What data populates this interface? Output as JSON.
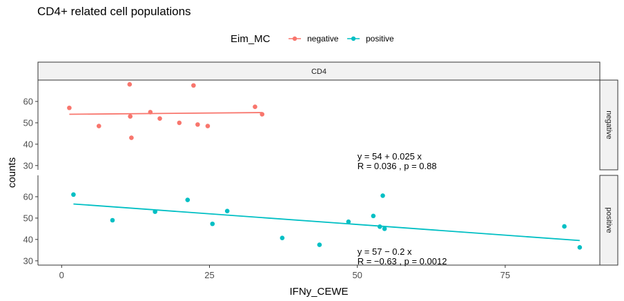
{
  "colors": {
    "negative": "#F8766D",
    "positive": "#00BFC4"
  },
  "chart_data": {
    "type": "scatter",
    "title": "CD4+ related cell populations",
    "xlabel": "IFNy_CEWE",
    "ylabel": "counts",
    "xlim": [
      -4,
      91
    ],
    "ylim": [
      28,
      70
    ],
    "x_ticks": [
      0,
      25,
      50,
      75
    ],
    "y_ticks": [
      30,
      40,
      50,
      60
    ],
    "column_strip": "CD4",
    "legend": {
      "title": "Eim_MC",
      "position": "top",
      "entries": [
        "negative",
        "positive"
      ]
    },
    "grid": false,
    "panels": [
      {
        "name": "negative",
        "color_key": "negative",
        "points": [
          {
            "x": 1.3,
            "y": 57
          },
          {
            "x": 6.3,
            "y": 48.5
          },
          {
            "x": 11.5,
            "y": 68
          },
          {
            "x": 11.6,
            "y": 53
          },
          {
            "x": 11.8,
            "y": 43
          },
          {
            "x": 15,
            "y": 55
          },
          {
            "x": 16.6,
            "y": 52
          },
          {
            "x": 19.9,
            "y": 50
          },
          {
            "x": 22.3,
            "y": 67.5
          },
          {
            "x": 23,
            "y": 49.2
          },
          {
            "x": 24.7,
            "y": 48.5
          },
          {
            "x": 32.7,
            "y": 57.5
          },
          {
            "x": 33.9,
            "y": 54
          }
        ],
        "fit": {
          "x": [
            1.3,
            33.9
          ],
          "y": [
            54.0,
            54.8
          ]
        },
        "equation": "y = 54 + 0.025 x",
        "stats": "R = 0.036 , p = 0.88",
        "label_x": 50
      },
      {
        "name": "positive",
        "color_key": "positive",
        "points": [
          {
            "x": 2,
            "y": 61
          },
          {
            "x": 8.6,
            "y": 49
          },
          {
            "x": 15.8,
            "y": 53
          },
          {
            "x": 21.3,
            "y": 58.5
          },
          {
            "x": 25.5,
            "y": 47.3
          },
          {
            "x": 28,
            "y": 53.3
          },
          {
            "x": 37.3,
            "y": 40.7
          },
          {
            "x": 43.6,
            "y": 37.5
          },
          {
            "x": 48.5,
            "y": 48.3
          },
          {
            "x": 52.7,
            "y": 51
          },
          {
            "x": 53.8,
            "y": 46
          },
          {
            "x": 54.3,
            "y": 60.5
          },
          {
            "x": 54.6,
            "y": 45
          },
          {
            "x": 85,
            "y": 46.1
          },
          {
            "x": 87.6,
            "y": 36.3
          }
        ],
        "fit": {
          "x": [
            2,
            87.6
          ],
          "y": [
            56.6,
            39.5
          ]
        },
        "equation": "y = 57 − 0.2 x",
        "stats": "R = −0.63 , p = 0.0012",
        "label_x": 50
      }
    ]
  }
}
